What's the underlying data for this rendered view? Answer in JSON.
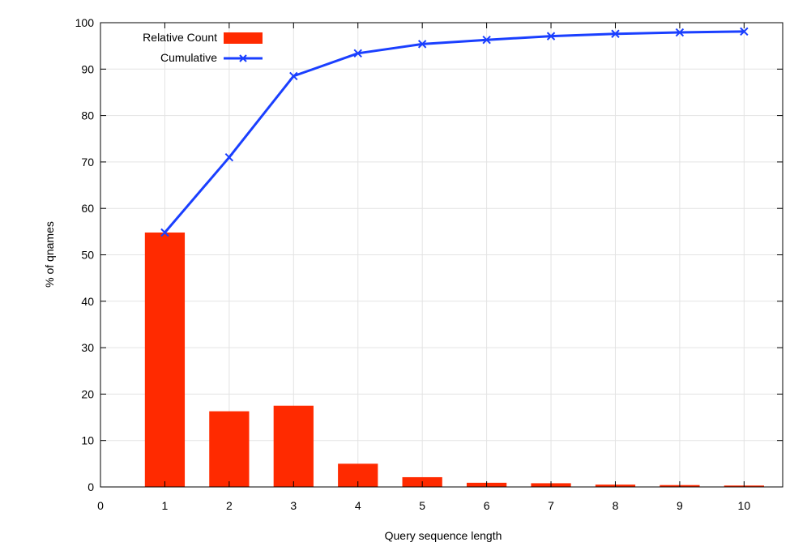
{
  "chart_data": {
    "type": "bar",
    "title": "",
    "xlabel": "Query sequence length",
    "ylabel": "% of qnames",
    "xlim": [
      0,
      10.6
    ],
    "ylim": [
      0,
      100
    ],
    "xticks": [
      0,
      1,
      2,
      3,
      4,
      5,
      6,
      7,
      8,
      9,
      10
    ],
    "yticks": [
      0,
      10,
      20,
      30,
      40,
      50,
      60,
      70,
      80,
      90,
      100
    ],
    "grid": true,
    "legend_position": "top-left",
    "x": [
      1,
      2,
      3,
      4,
      5,
      6,
      7,
      8,
      9,
      10
    ],
    "series": [
      {
        "name": "Relative Count",
        "type": "bar",
        "color": "#ff2a00",
        "values": [
          54.8,
          16.3,
          17.5,
          5.0,
          2.1,
          0.9,
          0.8,
          0.5,
          0.4,
          0.3
        ]
      },
      {
        "name": "Cumulative",
        "type": "line",
        "marker": "x",
        "color": "#1a3fff",
        "values": [
          54.8,
          71.0,
          88.5,
          93.4,
          95.4,
          96.3,
          97.1,
          97.6,
          97.9,
          98.1
        ]
      }
    ]
  }
}
